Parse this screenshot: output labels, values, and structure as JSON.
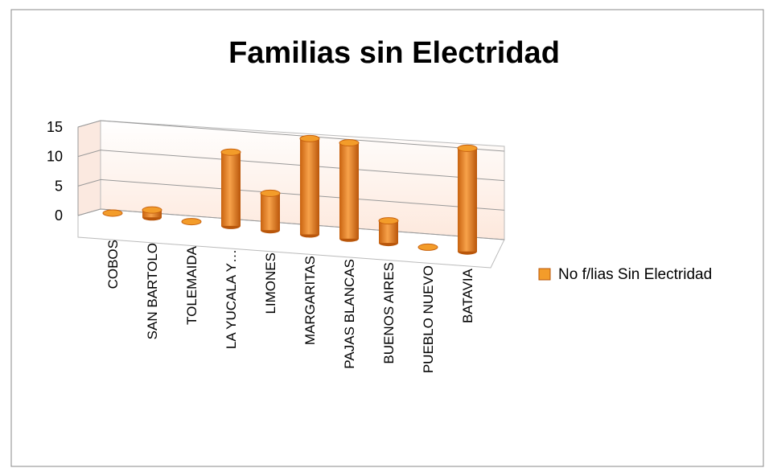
{
  "chart_data": {
    "type": "bar3d",
    "title": "Familias sin Electridad",
    "categories": [
      "COBOS",
      "SAN BARTOLO",
      "TOLEMAIDA",
      "LA YUCALA  Y…",
      "LIMONES",
      "MARGARITAS",
      "PAJAS BLANCAS",
      "BUENOS AIRES",
      "PUEBLO NUEVO",
      "BATAVIA"
    ],
    "series": [
      {
        "name": "No f/lias Sin Electridad",
        "color": "#f39c2a",
        "values": [
          0,
          1,
          0,
          10,
          5,
          13,
          13,
          3,
          0,
          14
        ]
      }
    ],
    "ylim": [
      0,
      15
    ],
    "yticks": [
      0,
      5,
      10,
      15
    ],
    "grid": true,
    "legend": "right"
  }
}
